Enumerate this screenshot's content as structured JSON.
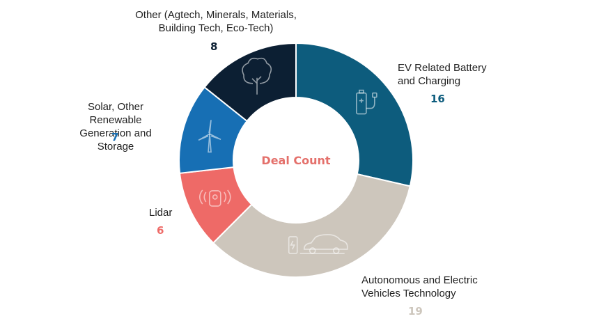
{
  "chart_data": {
    "type": "pie",
    "title": "Deal Count",
    "categories": [
      "EV Related Battery and Charging",
      "Autonomous and Electric Vehicles Technology",
      "Lidar",
      "Solar, Other Renewable Generation and Storage",
      "Other (Agtech, Minerals, Materials, Building Tech, Eco-Tech)"
    ],
    "values": [
      16,
      19,
      6,
      7,
      8
    ],
    "label_lines": [
      [
        "EV Related Battery",
        "and Charging"
      ],
      [
        "Autonomous and Electric",
        "Vehicles Technology"
      ],
      [
        "Lidar"
      ],
      [
        "Solar, Other Renewable",
        "Generation and Storage"
      ],
      [
        "Other (Agtech, Minerals, Materials,",
        "Building Tech, Eco-Tech)"
      ]
    ],
    "colors": [
      "#0d5c7d",
      "#cdc6bc",
      "#ee6a67",
      "#176fb4",
      "#0c1f33"
    ],
    "count_colors": [
      "#0d5c7d",
      "#cdc6bc",
      "#ee6a67",
      "#176fb4",
      "#0c1f33"
    ],
    "icons": [
      "battery-charger-icon",
      "electric-car-charging-icon",
      "lidar-sensor-icon",
      "wind-turbine-icon",
      "tree-icon"
    ],
    "center_color": "#e4706b",
    "legend": "none"
  }
}
